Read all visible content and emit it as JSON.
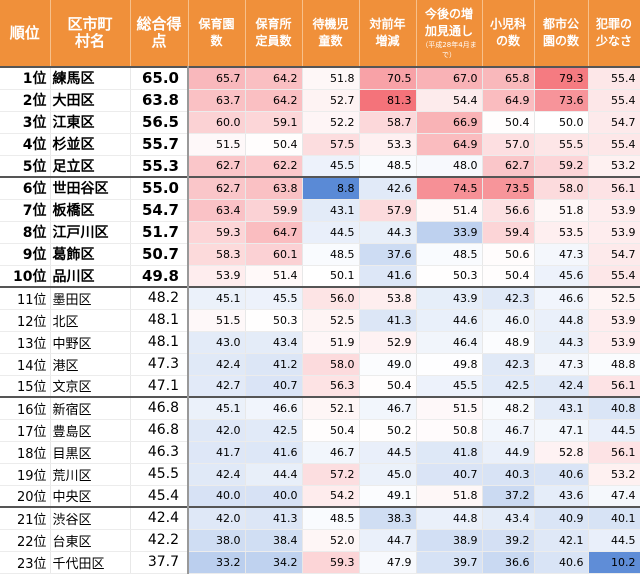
{
  "headers": [
    {
      "lines": [
        "順位"
      ],
      "cls": "big"
    },
    {
      "lines": [
        "区市町",
        "村名"
      ],
      "cls": "big"
    },
    {
      "lines": [
        "総合得",
        "点"
      ],
      "cls": "big"
    },
    {
      "lines": [
        "保育園",
        "数"
      ],
      "cls": "sm"
    },
    {
      "lines": [
        "保育所",
        "定員数"
      ],
      "cls": "sm"
    },
    {
      "lines": [
        "待機児",
        "童数"
      ],
      "cls": "sm"
    },
    {
      "lines": [
        "対前年",
        "増減"
      ],
      "cls": "sm"
    },
    {
      "lines": [
        "今後の増",
        "加見通し"
      ],
      "note": "（平成28年4月まで）",
      "cls": "sm"
    },
    {
      "lines": [
        "小児科",
        "の数"
      ],
      "cls": "sm"
    },
    {
      "lines": [
        "都市公",
        "園の数"
      ],
      "cls": "sm"
    },
    {
      "lines": [
        "犯罪の",
        "少なさ"
      ],
      "cls": "sm"
    }
  ],
  "rows": [
    {
      "rank": "1位",
      "name": "練馬区",
      "total": "65.0",
      "v": [
        "65.7",
        "64.2",
        "51.8",
        "70.5",
        "67.0",
        "65.8",
        "79.3",
        "55.4"
      ]
    },
    {
      "rank": "2位",
      "name": "大田区",
      "total": "63.8",
      "v": [
        "63.7",
        "64.2",
        "52.7",
        "81.3",
        "54.4",
        "64.9",
        "73.6",
        "55.4"
      ]
    },
    {
      "rank": "3位",
      "name": "江東区",
      "total": "56.5",
      "v": [
        "60.0",
        "59.1",
        "52.2",
        "58.7",
        "66.9",
        "50.4",
        "50.0",
        "54.7"
      ]
    },
    {
      "rank": "4位",
      "name": "杉並区",
      "total": "55.7",
      "v": [
        "51.5",
        "50.4",
        "57.5",
        "53.3",
        "64.9",
        "57.0",
        "55.5",
        "55.4"
      ]
    },
    {
      "rank": "5位",
      "name": "足立区",
      "total": "55.3",
      "v": [
        "62.7",
        "62.2",
        "45.5",
        "48.5",
        "48.0",
        "62.7",
        "59.2",
        "53.2"
      ]
    },
    {
      "rank": "6位",
      "name": "世田谷区",
      "total": "55.0",
      "v": [
        "62.7",
        "63.8",
        "8.8",
        "42.6",
        "74.5",
        "73.5",
        "58.0",
        "56.1"
      ]
    },
    {
      "rank": "7位",
      "name": "板橋区",
      "total": "54.7",
      "v": [
        "63.4",
        "59.9",
        "43.1",
        "57.9",
        "51.4",
        "56.6",
        "51.8",
        "53.9"
      ]
    },
    {
      "rank": "8位",
      "name": "江戸川区",
      "total": "51.7",
      "v": [
        "59.3",
        "64.7",
        "44.5",
        "44.3",
        "33.9",
        "59.4",
        "53.5",
        "53.9"
      ]
    },
    {
      "rank": "9位",
      "name": "葛飾区",
      "total": "50.7",
      "v": [
        "58.3",
        "60.1",
        "48.5",
        "37.6",
        "48.5",
        "50.6",
        "47.3",
        "54.7"
      ]
    },
    {
      "rank": "10位",
      "name": "品川区",
      "total": "49.8",
      "v": [
        "53.9",
        "51.4",
        "50.1",
        "41.6",
        "50.3",
        "50.4",
        "45.6",
        "55.4"
      ]
    },
    {
      "rank": "11位",
      "name": "墨田区",
      "total": "48.2",
      "v": [
        "45.1",
        "45.5",
        "56.0",
        "53.8",
        "43.9",
        "42.3",
        "46.6",
        "52.5"
      ]
    },
    {
      "rank": "12位",
      "name": "北区",
      "total": "48.1",
      "v": [
        "51.5",
        "50.3",
        "52.5",
        "41.3",
        "44.6",
        "46.0",
        "44.8",
        "53.9"
      ]
    },
    {
      "rank": "13位",
      "name": "中野区",
      "total": "48.1",
      "v": [
        "43.0",
        "43.4",
        "51.9",
        "52.9",
        "46.4",
        "48.9",
        "44.3",
        "53.9"
      ]
    },
    {
      "rank": "14位",
      "name": "港区",
      "total": "47.3",
      "v": [
        "42.4",
        "41.2",
        "58.0",
        "49.0",
        "49.8",
        "42.3",
        "47.3",
        "48.8"
      ]
    },
    {
      "rank": "15位",
      "name": "文京区",
      "total": "47.1",
      "v": [
        "42.7",
        "40.7",
        "56.3",
        "50.4",
        "45.5",
        "42.5",
        "42.4",
        "56.1"
      ]
    },
    {
      "rank": "16位",
      "name": "新宿区",
      "total": "46.8",
      "v": [
        "45.1",
        "46.6",
        "52.1",
        "46.7",
        "51.5",
        "48.2",
        "43.1",
        "40.8"
      ]
    },
    {
      "rank": "17位",
      "name": "豊島区",
      "total": "46.8",
      "v": [
        "42.0",
        "42.5",
        "50.4",
        "50.2",
        "50.8",
        "46.7",
        "47.1",
        "44.5"
      ]
    },
    {
      "rank": "18位",
      "name": "目黒区",
      "total": "46.3",
      "v": [
        "41.7",
        "41.6",
        "46.7",
        "44.5",
        "41.8",
        "44.9",
        "52.8",
        "56.1"
      ]
    },
    {
      "rank": "19位",
      "name": "荒川区",
      "total": "45.5",
      "v": [
        "42.4",
        "44.4",
        "57.2",
        "45.0",
        "40.7",
        "40.3",
        "40.6",
        "53.2"
      ]
    },
    {
      "rank": "20位",
      "name": "中央区",
      "total": "45.4",
      "v": [
        "40.0",
        "40.0",
        "54.2",
        "49.1",
        "51.8",
        "37.2",
        "43.6",
        "47.4"
      ]
    },
    {
      "rank": "21位",
      "name": "渋谷区",
      "total": "42.4",
      "v": [
        "42.0",
        "41.3",
        "48.5",
        "38.3",
        "44.8",
        "43.4",
        "40.9",
        "40.1"
      ]
    },
    {
      "rank": "22位",
      "name": "台東区",
      "total": "42.2",
      "v": [
        "38.0",
        "38.4",
        "52.0",
        "44.7",
        "38.9",
        "39.2",
        "42.1",
        "44.5"
      ]
    },
    {
      "rank": "23位",
      "name": "千代田区",
      "total": "37.7",
      "v": [
        "33.2",
        "34.2",
        "59.3",
        "47.9",
        "39.7",
        "36.6",
        "40.6",
        "10.2"
      ]
    }
  ],
  "colors": {
    "header": "#f0903a",
    "high": "#f4737a",
    "low": "#5a8ad6",
    "neutral": "#ffffff"
  }
}
